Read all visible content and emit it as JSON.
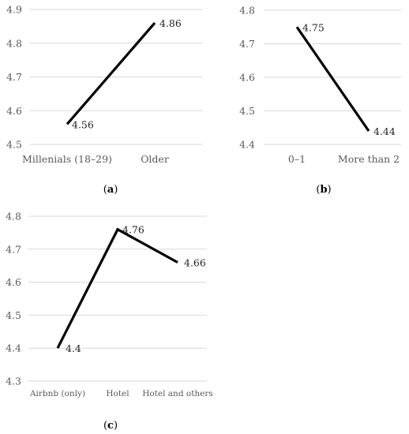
{
  "chart_data": [
    {
      "type": "line",
      "caption_letter": "a",
      "categories": [
        "Millenials (18–29)",
        "Older"
      ],
      "values": [
        4.56,
        4.86
      ],
      "data_labels": [
        "4.56",
        "4.86"
      ],
      "ylim": [
        4.5,
        4.9
      ],
      "yticks": [
        "4.5",
        "4.6",
        "4.7",
        "4.8",
        "4.9"
      ],
      "grid": true,
      "title": "",
      "xlabel": "",
      "ylabel": ""
    },
    {
      "type": "line",
      "caption_letter": "b",
      "categories": [
        "0–1",
        "More than 2"
      ],
      "values": [
        4.75,
        4.44
      ],
      "data_labels": [
        "4.75",
        "4.44"
      ],
      "ylim": [
        4.4,
        4.8
      ],
      "yticks": [
        "4.4",
        "4.5",
        "4.6",
        "4.7",
        "4.8"
      ],
      "grid": true,
      "title": "",
      "xlabel": "",
      "ylabel": ""
    },
    {
      "type": "line",
      "caption_letter": "c",
      "categories": [
        "Airbnb (only)",
        "Hotel",
        "Hotel and others"
      ],
      "values": [
        4.4,
        4.76,
        4.66
      ],
      "data_labels": [
        "4.4",
        "4.76",
        "4.66"
      ],
      "ylim": [
        4.3,
        4.8
      ],
      "yticks": [
        "4.3",
        "4.4",
        "4.5",
        "4.6",
        "4.7",
        "4.8"
      ],
      "grid": true,
      "title": "",
      "xlabel": "",
      "ylabel": ""
    }
  ]
}
